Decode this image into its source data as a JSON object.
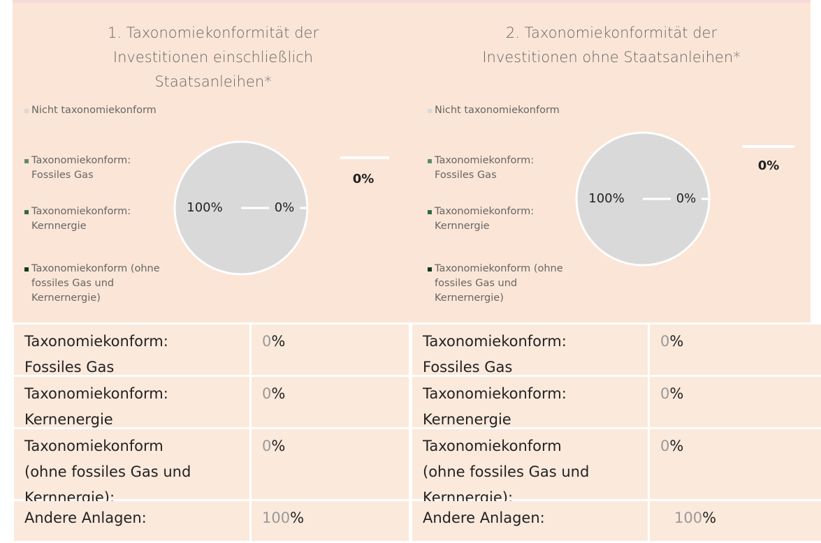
{
  "chart_data": [
    {
      "type": "pie",
      "title": "1. Taxonomiekonformität der Investitionen einschließlich Staatsanleihen*",
      "categories": [
        "Nicht taxonomiekonform",
        "Taxonomiekonform: Fossiles Gas",
        "Taxonomiekonform: Kernnergie",
        "Taxonomiekonform (ohne fossiles Gas und Kernernergie)"
      ],
      "values": [
        100,
        0,
        0,
        0
      ],
      "value_labels": [
        "100%",
        "0%",
        "0%",
        null
      ],
      "colors": [
        "#d9d9d9",
        "#5e8c6a",
        "#2f6b45",
        "#0a3a1e"
      ]
    },
    {
      "type": "pie",
      "title": "2. Taxonomiekonformität der Investitionen ohne Staatsanleihen*",
      "categories": [
        "Nicht taxonomiekonform",
        "Taxonomiekonform: Fossiles Gas",
        "Taxonomiekonform: Kernnergie",
        "Taxonomiekonform (ohne fossiles Gas und Kernernergie)"
      ],
      "values": [
        100,
        0,
        0,
        0
      ],
      "value_labels": [
        "100%",
        "0%",
        "0%",
        null
      ],
      "colors": [
        "#d9d9d9",
        "#5e8c6a",
        "#2f6b45",
        "#0a3a1e"
      ]
    }
  ],
  "table": {
    "rows": [
      [
        {
          "label": "Taxonomiekonform: Fossiles Gas",
          "value": 0,
          "unit": "%"
        },
        {
          "label": "Taxonomiekonform: Fossiles Gas",
          "value": 0,
          "unit": "%"
        }
      ],
      [
        {
          "label": "Taxonomiekonform: Kernenergie",
          "value": 0,
          "unit": "%"
        },
        {
          "label": "Taxonomiekonform: Kernenergie",
          "value": 0,
          "unit": "%"
        }
      ],
      [
        {
          "label": "Taxonomiekonform (ohne fossiles Gas und Kernnergie):",
          "value": 0,
          "unit": "%"
        },
        {
          "label": "Taxonomiekonform (ohne fossiles Gas und Kernnergie):",
          "value": 0,
          "unit": "%"
        }
      ],
      [
        {
          "label": "Andere Anlagen:",
          "value": 100,
          "unit": "%"
        },
        {
          "label": "Andere Anlagen:",
          "value": 100,
          "unit": "%"
        }
      ]
    ]
  }
}
